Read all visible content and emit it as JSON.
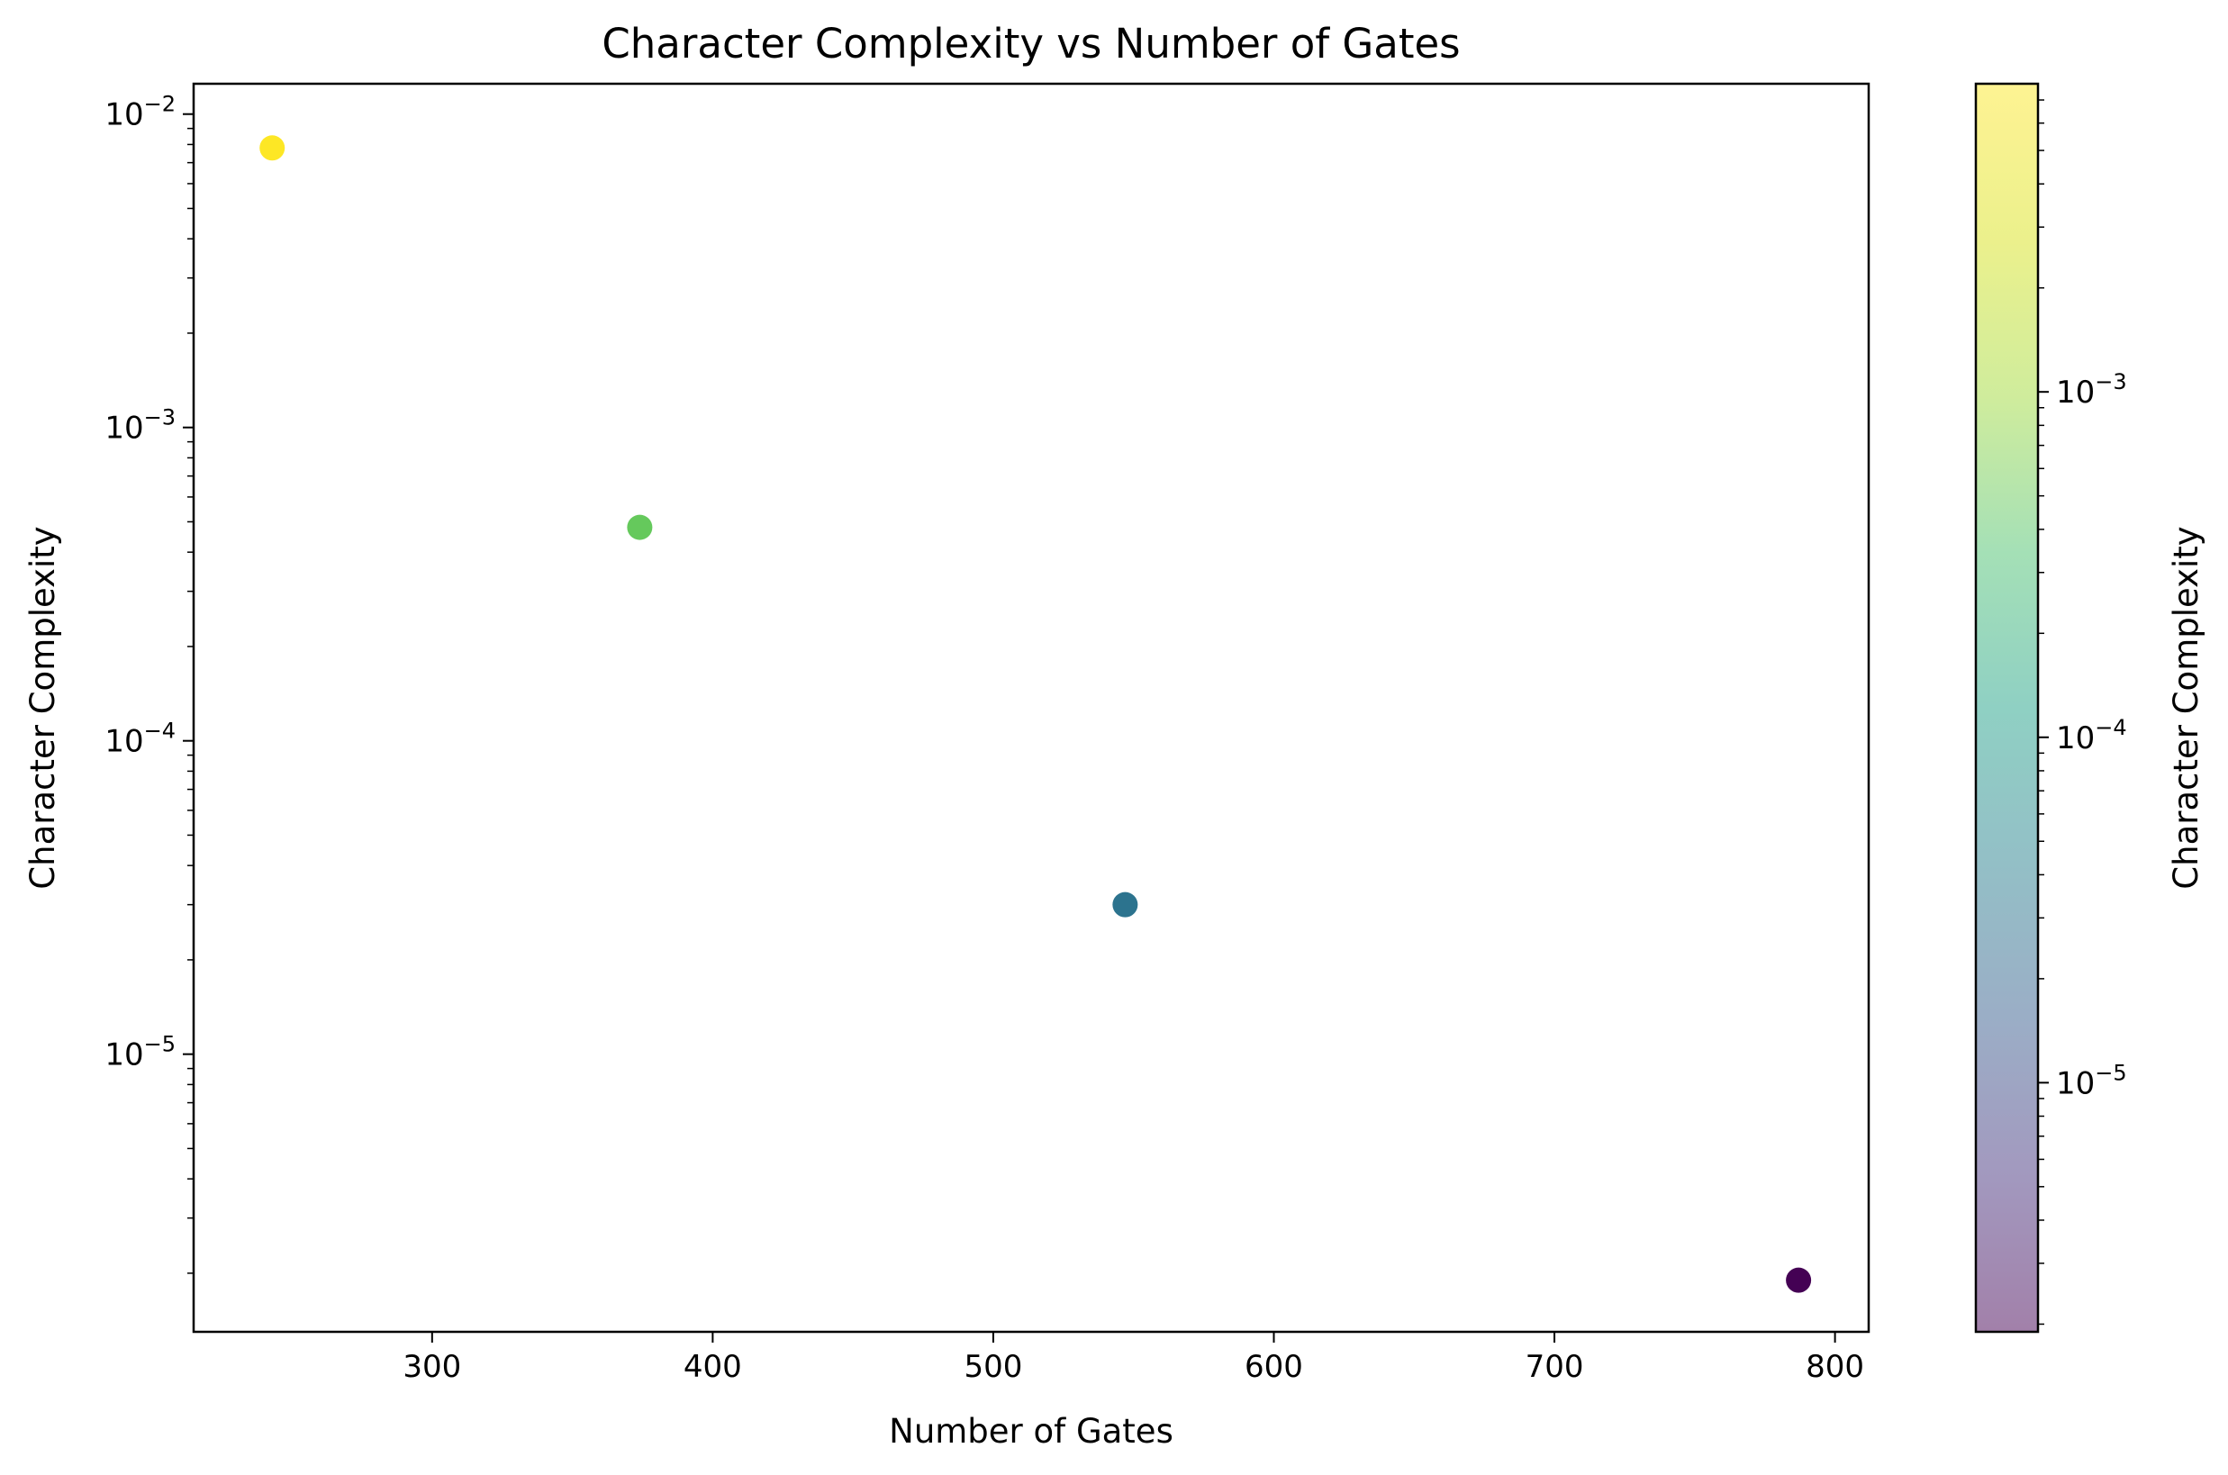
{
  "chart_data": {
    "type": "scatter",
    "title": "Character Complexity vs Number of Gates",
    "xlabel": "Number of Gates",
    "ylabel": "Character Complexity",
    "x_scale": "linear",
    "y_scale": "log",
    "xlim": [
      215,
      812
    ],
    "ylim": [
      1.3e-06,
      0.0125
    ],
    "x_ticks": [
      300,
      400,
      500,
      600,
      700,
      800
    ],
    "y_ticks": [
      {
        "value": 1e-05,
        "base": "10",
        "exp": "−5"
      },
      {
        "value": 0.0001,
        "base": "10",
        "exp": "−4"
      },
      {
        "value": 0.001,
        "base": "10",
        "exp": "−3"
      },
      {
        "value": 0.01,
        "base": "10",
        "exp": "−2"
      }
    ],
    "points": [
      {
        "x": 243,
        "y": 0.0078
      },
      {
        "x": 374,
        "y": 0.00048
      },
      {
        "x": 547,
        "y": 3e-05
      },
      {
        "x": 787,
        "y": 1.9e-06
      }
    ],
    "grid": false,
    "colormap": "viridis",
    "colorbar": {
      "label": "Character Complexity",
      "scale": "log",
      "range": [
        1.9e-06,
        0.0078
      ],
      "alpha": 0.5,
      "ticks": [
        {
          "value": 1e-05,
          "base": "10",
          "exp": "−5"
        },
        {
          "value": 0.0001,
          "base": "10",
          "exp": "−4"
        },
        {
          "value": 0.001,
          "base": "10",
          "exp": "−3"
        }
      ]
    }
  }
}
